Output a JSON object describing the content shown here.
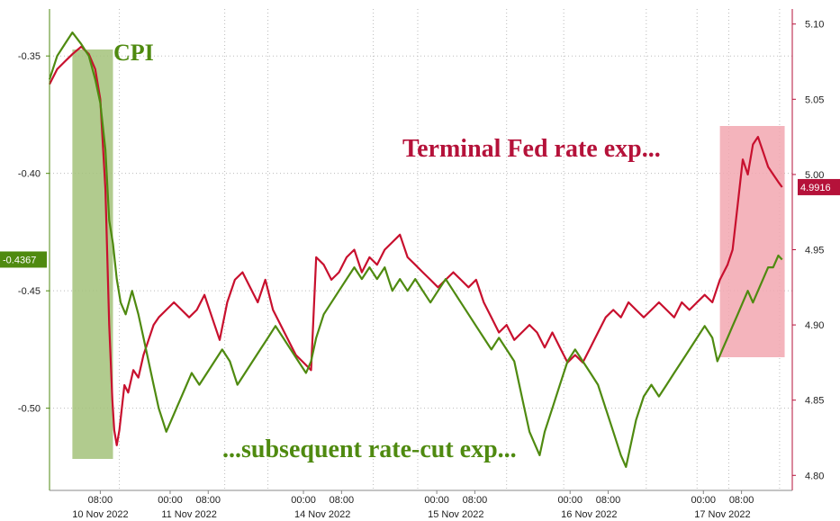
{
  "chart_data": {
    "type": "line",
    "title": "",
    "x_ticks": [
      "08:00",
      "00:00",
      "08:00",
      "00:00",
      "08:00",
      "00:00",
      "08:00",
      "00:00",
      "08:00",
      "00:00",
      "08:00"
    ],
    "x_days": [
      "10 Nov 2022",
      "11 Nov 2022",
      "14 Nov 2022",
      "15 Nov 2022",
      "16 Nov 2022",
      "17 Nov 2022"
    ],
    "left_axis": {
      "ticks": [
        "-0.35",
        "-0.40",
        "-0.45",
        "-0.50"
      ],
      "range": [
        -0.535,
        -0.33
      ],
      "color": "#4f8a10"
    },
    "right_axis": {
      "ticks": [
        "5.10",
        "5.05",
        "5.00",
        "4.95",
        "4.90",
        "4.85",
        "4.80"
      ],
      "range": [
        4.79,
        5.11
      ],
      "color": "#b5123a"
    },
    "grid": true,
    "annotations": {
      "cpi": "CPI",
      "terminal": "Terminal Fed rate exp...",
      "cut": "...subsequent rate-cut exp..."
    },
    "last_value_left": "-0.4367",
    "last_value_right": "4.9916",
    "series": [
      {
        "axis": "right",
        "color": "#c8102e",
        "points": [
          [
            0,
            5.06
          ],
          [
            0.6,
            5.07
          ],
          [
            1.2,
            5.075
          ],
          [
            1.8,
            5.08
          ],
          [
            2.5,
            5.085
          ],
          [
            3.1,
            5.08
          ],
          [
            3.6,
            5.07
          ],
          [
            4.0,
            5.05
          ],
          [
            4.4,
            4.99
          ],
          [
            4.7,
            4.9
          ],
          [
            4.95,
            4.85
          ],
          [
            5.1,
            4.83
          ],
          [
            5.3,
            4.82
          ],
          [
            5.5,
            4.83
          ],
          [
            5.7,
            4.845
          ],
          [
            5.9,
            4.86
          ],
          [
            6.2,
            4.855
          ],
          [
            6.6,
            4.87
          ],
          [
            7.0,
            4.865
          ],
          [
            7.4,
            4.88
          ],
          [
            7.8,
            4.89
          ],
          [
            8.2,
            4.9
          ],
          [
            8.6,
            4.905
          ],
          [
            9.2,
            4.91
          ],
          [
            9.8,
            4.915
          ],
          [
            10.4,
            4.91
          ],
          [
            11.0,
            4.905
          ],
          [
            11.6,
            4.91
          ],
          [
            12.2,
            4.92
          ],
          [
            12.8,
            4.905
          ],
          [
            13.4,
            4.89
          ],
          [
            14.0,
            4.915
          ],
          [
            14.6,
            4.93
          ],
          [
            15.2,
            4.935
          ],
          [
            15.8,
            4.925
          ],
          [
            16.4,
            4.915
          ],
          [
            17.0,
            4.93
          ],
          [
            17.6,
            4.91
          ],
          [
            18.2,
            4.9
          ],
          [
            18.8,
            4.89
          ],
          [
            19.4,
            4.88
          ],
          [
            20.0,
            4.875
          ],
          [
            20.6,
            4.87
          ],
          [
            21.0,
            4.945
          ],
          [
            21.6,
            4.94
          ],
          [
            22.2,
            4.93
          ],
          [
            22.8,
            4.935
          ],
          [
            23.4,
            4.945
          ],
          [
            24.0,
            4.95
          ],
          [
            24.6,
            4.935
          ],
          [
            25.2,
            4.945
          ],
          [
            25.8,
            4.94
          ],
          [
            26.4,
            4.95
          ],
          [
            27.0,
            4.955
          ],
          [
            27.6,
            4.96
          ],
          [
            28.2,
            4.945
          ],
          [
            28.8,
            4.94
          ],
          [
            29.4,
            4.935
          ],
          [
            30.0,
            4.93
          ],
          [
            30.6,
            4.925
          ],
          [
            31.2,
            4.93
          ],
          [
            31.8,
            4.935
          ],
          [
            32.4,
            4.93
          ],
          [
            33.0,
            4.925
          ],
          [
            33.6,
            4.93
          ],
          [
            34.2,
            4.915
          ],
          [
            34.8,
            4.905
          ],
          [
            35.4,
            4.895
          ],
          [
            36.0,
            4.9
          ],
          [
            36.6,
            4.89
          ],
          [
            37.2,
            4.895
          ],
          [
            37.8,
            4.9
          ],
          [
            38.4,
            4.895
          ],
          [
            39.0,
            4.885
          ],
          [
            39.6,
            4.895
          ],
          [
            40.2,
            4.885
          ],
          [
            40.8,
            4.875
          ],
          [
            41.4,
            4.88
          ],
          [
            42.0,
            4.875
          ],
          [
            42.6,
            4.885
          ],
          [
            43.2,
            4.895
          ],
          [
            43.8,
            4.905
          ],
          [
            44.4,
            4.91
          ],
          [
            45.0,
            4.905
          ],
          [
            45.6,
            4.915
          ],
          [
            46.2,
            4.91
          ],
          [
            46.8,
            4.905
          ],
          [
            47.4,
            4.91
          ],
          [
            48.0,
            4.915
          ],
          [
            48.6,
            4.91
          ],
          [
            49.2,
            4.905
          ],
          [
            49.8,
            4.915
          ],
          [
            50.4,
            4.91
          ],
          [
            51.0,
            4.915
          ],
          [
            51.6,
            4.92
          ],
          [
            52.2,
            4.915
          ],
          [
            52.8,
            4.93
          ],
          [
            53.4,
            4.94
          ],
          [
            53.8,
            4.95
          ],
          [
            54.2,
            4.98
          ],
          [
            54.6,
            5.01
          ],
          [
            55.0,
            5.0
          ],
          [
            55.4,
            5.02
          ],
          [
            55.8,
            5.025
          ],
          [
            56.2,
            5.015
          ],
          [
            56.6,
            5.005
          ],
          [
            57.0,
            5.0
          ],
          [
            57.4,
            4.995
          ],
          [
            57.7,
            4.9916
          ]
        ]
      },
      {
        "axis": "left",
        "color": "#4f8a10",
        "points": [
          [
            0,
            -0.36
          ],
          [
            0.6,
            -0.35
          ],
          [
            1.2,
            -0.345
          ],
          [
            1.8,
            -0.34
          ],
          [
            2.5,
            -0.345
          ],
          [
            3.1,
            -0.35
          ],
          [
            3.6,
            -0.36
          ],
          [
            4.0,
            -0.37
          ],
          [
            4.4,
            -0.39
          ],
          [
            4.7,
            -0.42
          ],
          [
            5.0,
            -0.43
          ],
          [
            5.3,
            -0.445
          ],
          [
            5.6,
            -0.455
          ],
          [
            6.0,
            -0.46
          ],
          [
            6.5,
            -0.45
          ],
          [
            7.0,
            -0.46
          ],
          [
            7.4,
            -0.47
          ],
          [
            7.8,
            -0.48
          ],
          [
            8.2,
            -0.49
          ],
          [
            8.6,
            -0.5
          ],
          [
            8.9,
            -0.505
          ],
          [
            9.2,
            -0.51
          ],
          [
            9.6,
            -0.505
          ],
          [
            10.0,
            -0.5
          ],
          [
            10.4,
            -0.495
          ],
          [
            10.8,
            -0.49
          ],
          [
            11.2,
            -0.485
          ],
          [
            11.8,
            -0.49
          ],
          [
            12.4,
            -0.485
          ],
          [
            13.0,
            -0.48
          ],
          [
            13.6,
            -0.475
          ],
          [
            14.2,
            -0.48
          ],
          [
            14.8,
            -0.49
          ],
          [
            15.4,
            -0.485
          ],
          [
            16.0,
            -0.48
          ],
          [
            16.6,
            -0.475
          ],
          [
            17.2,
            -0.47
          ],
          [
            17.8,
            -0.465
          ],
          [
            18.4,
            -0.47
          ],
          [
            19.0,
            -0.475
          ],
          [
            19.6,
            -0.48
          ],
          [
            20.2,
            -0.485
          ],
          [
            20.6,
            -0.48
          ],
          [
            21.0,
            -0.47
          ],
          [
            21.6,
            -0.46
          ],
          [
            22.2,
            -0.455
          ],
          [
            22.8,
            -0.45
          ],
          [
            23.4,
            -0.445
          ],
          [
            24.0,
            -0.44
          ],
          [
            24.6,
            -0.445
          ],
          [
            25.2,
            -0.44
          ],
          [
            25.8,
            -0.445
          ],
          [
            26.4,
            -0.44
          ],
          [
            27.0,
            -0.45
          ],
          [
            27.6,
            -0.445
          ],
          [
            28.2,
            -0.45
          ],
          [
            28.8,
            -0.445
          ],
          [
            29.4,
            -0.45
          ],
          [
            30.0,
            -0.455
          ],
          [
            30.6,
            -0.45
          ],
          [
            31.2,
            -0.445
          ],
          [
            31.8,
            -0.45
          ],
          [
            32.4,
            -0.455
          ],
          [
            33.0,
            -0.46
          ],
          [
            33.6,
            -0.465
          ],
          [
            34.2,
            -0.47
          ],
          [
            34.8,
            -0.475
          ],
          [
            35.4,
            -0.47
          ],
          [
            36.0,
            -0.475
          ],
          [
            36.6,
            -0.48
          ],
          [
            37.0,
            -0.49
          ],
          [
            37.4,
            -0.5
          ],
          [
            37.8,
            -0.51
          ],
          [
            38.2,
            -0.515
          ],
          [
            38.6,
            -0.52
          ],
          [
            39.0,
            -0.51
          ],
          [
            39.6,
            -0.5
          ],
          [
            40.2,
            -0.49
          ],
          [
            40.8,
            -0.48
          ],
          [
            41.4,
            -0.475
          ],
          [
            42.0,
            -0.48
          ],
          [
            42.6,
            -0.485
          ],
          [
            43.2,
            -0.49
          ],
          [
            43.8,
            -0.5
          ],
          [
            44.4,
            -0.51
          ],
          [
            45.0,
            -0.52
          ],
          [
            45.4,
            -0.525
          ],
          [
            45.8,
            -0.515
          ],
          [
            46.2,
            -0.505
          ],
          [
            46.8,
            -0.495
          ],
          [
            47.4,
            -0.49
          ],
          [
            48.0,
            -0.495
          ],
          [
            48.6,
            -0.49
          ],
          [
            49.2,
            -0.485
          ],
          [
            49.8,
            -0.48
          ],
          [
            50.4,
            -0.475
          ],
          [
            51.0,
            -0.47
          ],
          [
            51.6,
            -0.465
          ],
          [
            52.2,
            -0.47
          ],
          [
            52.6,
            -0.48
          ],
          [
            53.0,
            -0.475
          ],
          [
            53.4,
            -0.47
          ],
          [
            53.8,
            -0.465
          ],
          [
            54.2,
            -0.46
          ],
          [
            54.6,
            -0.455
          ],
          [
            55.0,
            -0.45
          ],
          [
            55.4,
            -0.455
          ],
          [
            55.8,
            -0.45
          ],
          [
            56.2,
            -0.445
          ],
          [
            56.6,
            -0.44
          ],
          [
            57.0,
            -0.44
          ],
          [
            57.4,
            -0.435
          ],
          [
            57.7,
            -0.4367
          ]
        ]
      }
    ]
  },
  "colors": {
    "green": "#4f8a10",
    "red": "#b5123a",
    "line_red": "#c8102e",
    "cpi_band": "#a3c27a",
    "fed_band": "#f2a7b0"
  }
}
